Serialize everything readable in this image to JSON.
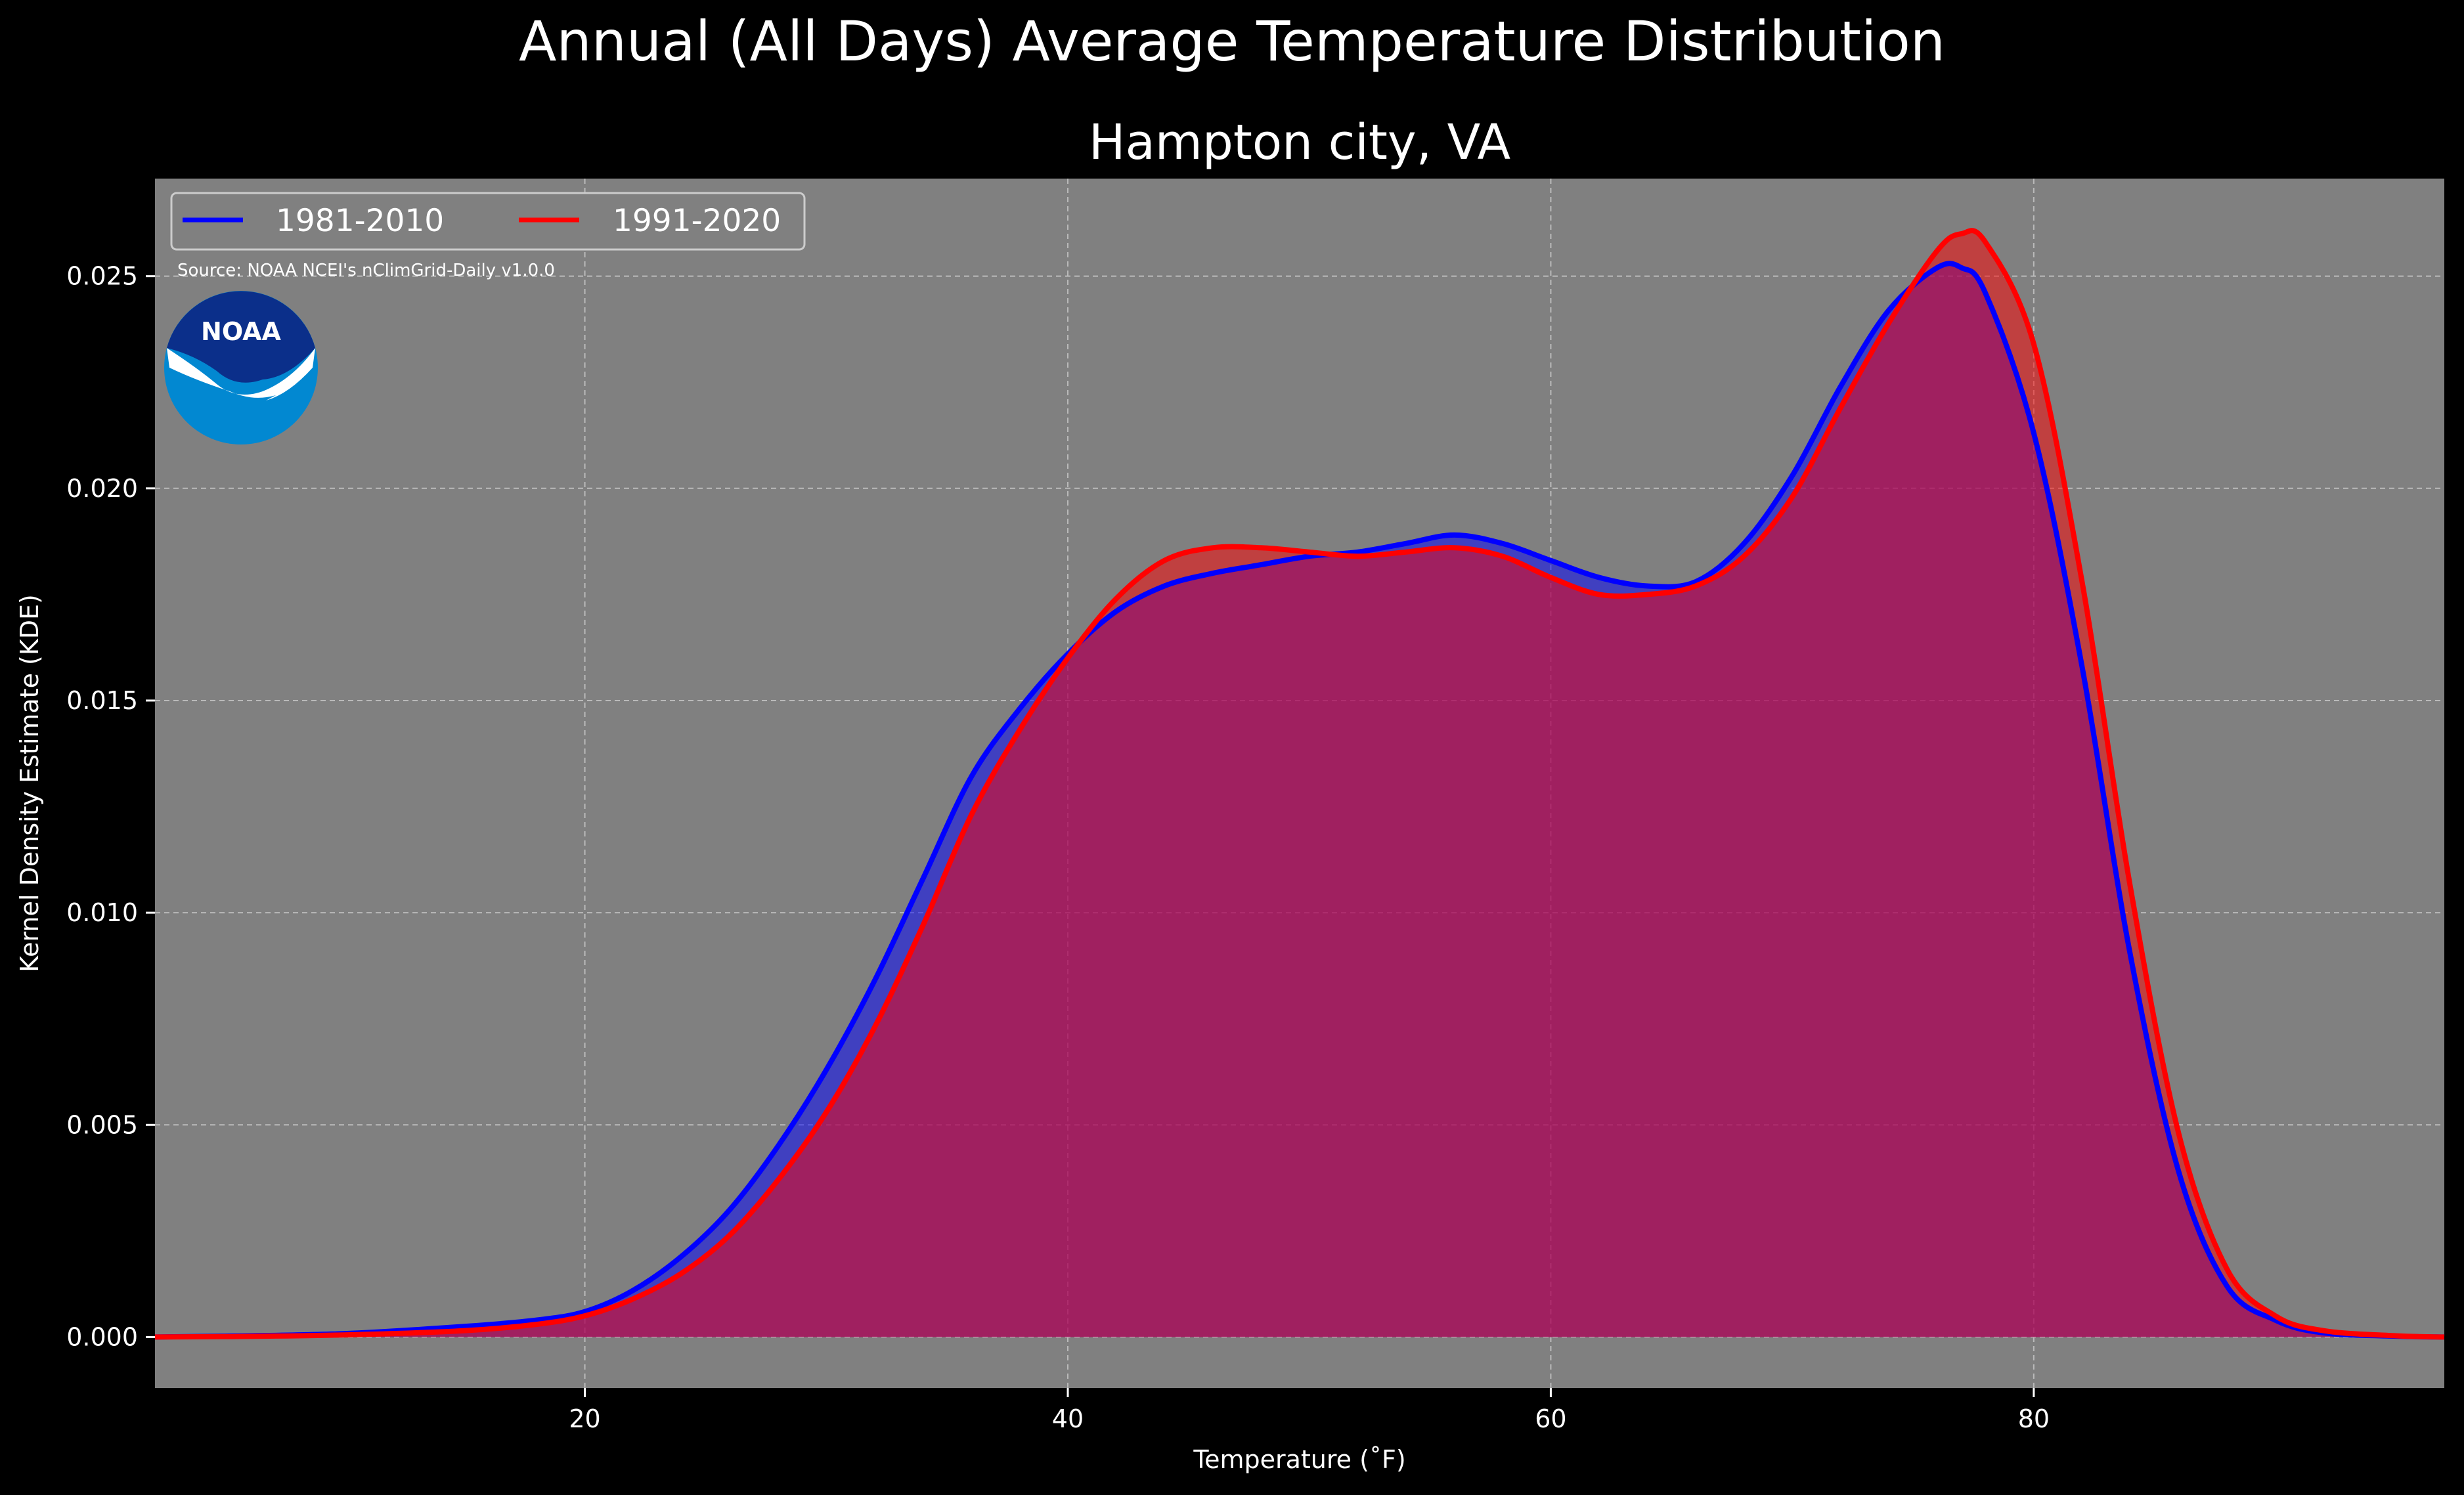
{
  "chart_data": {
    "type": "area",
    "suptitle": "Annual (All Days) Average Temperature Distribution",
    "title": "Hampton city, VA",
    "xlabel": "Temperature (˚F)",
    "ylabel": "Kernel Density Estimate (KDE)",
    "xlim": [
      2.2,
      97.0
    ],
    "ylim": [
      -0.0012,
      0.0273
    ],
    "xticks": [
      "20",
      "40",
      "60",
      "80"
    ],
    "yticks": [
      "0.000",
      "0.005",
      "0.010",
      "0.015",
      "0.020",
      "0.025"
    ],
    "grid": true,
    "legend_position": "top-left",
    "source_note": "Source: NOAA NCEI's nClimGrid-Daily v1.0.0",
    "logo_text": "NOAA",
    "series": [
      {
        "name": "1981-2010",
        "color": "#0000ff",
        "x": [
          2,
          5,
          10,
          15,
          18,
          20,
          22,
          24,
          26,
          28,
          30,
          32,
          34,
          36,
          38,
          40,
          42,
          44,
          46,
          48,
          50,
          52,
          54,
          56,
          58,
          60,
          62,
          64,
          66,
          68,
          70,
          72,
          74,
          76,
          77,
          78,
          80,
          82,
          84,
          86,
          88,
          90,
          92,
          95,
          97
        ],
        "y": [
          0.0,
          2e-05,
          8e-05,
          0.00025,
          0.0004,
          0.0006,
          0.0011,
          0.0019,
          0.003,
          0.0045,
          0.0063,
          0.0084,
          0.0108,
          0.0132,
          0.0148,
          0.0161,
          0.0171,
          0.0177,
          0.018,
          0.0182,
          0.0184,
          0.0185,
          0.0187,
          0.0189,
          0.0187,
          0.0183,
          0.0179,
          0.0177,
          0.0178,
          0.0187,
          0.0203,
          0.0224,
          0.0242,
          0.0252,
          0.0252,
          0.0246,
          0.0213,
          0.0158,
          0.009,
          0.0039,
          0.0012,
          0.0004,
          0.0001,
          2e-05,
          0.0
        ]
      },
      {
        "name": "1991-2020",
        "color": "#ff0000",
        "x": [
          2,
          5,
          10,
          15,
          18,
          20,
          22,
          24,
          26,
          28,
          30,
          32,
          34,
          36,
          38,
          40,
          42,
          44,
          46,
          48,
          50,
          52,
          54,
          56,
          58,
          60,
          62,
          64,
          66,
          68,
          70,
          72,
          74,
          76,
          77,
          78,
          80,
          82,
          84,
          86,
          88,
          90,
          92,
          95,
          97
        ],
        "y": [
          0.0,
          1e-05,
          5e-05,
          0.00015,
          0.0003,
          0.0005,
          0.0009,
          0.0015,
          0.0024,
          0.0037,
          0.0053,
          0.0073,
          0.0097,
          0.0123,
          0.0143,
          0.016,
          0.0174,
          0.0183,
          0.0186,
          0.0186,
          0.0185,
          0.0184,
          0.0185,
          0.0186,
          0.0184,
          0.0179,
          0.0175,
          0.0175,
          0.0177,
          0.0184,
          0.0198,
          0.0219,
          0.0239,
          0.0256,
          0.026,
          0.0258,
          0.0234,
          0.0178,
          0.0106,
          0.0048,
          0.0016,
          0.0005,
          0.00015,
          3e-05,
          0.0
        ]
      }
    ]
  }
}
